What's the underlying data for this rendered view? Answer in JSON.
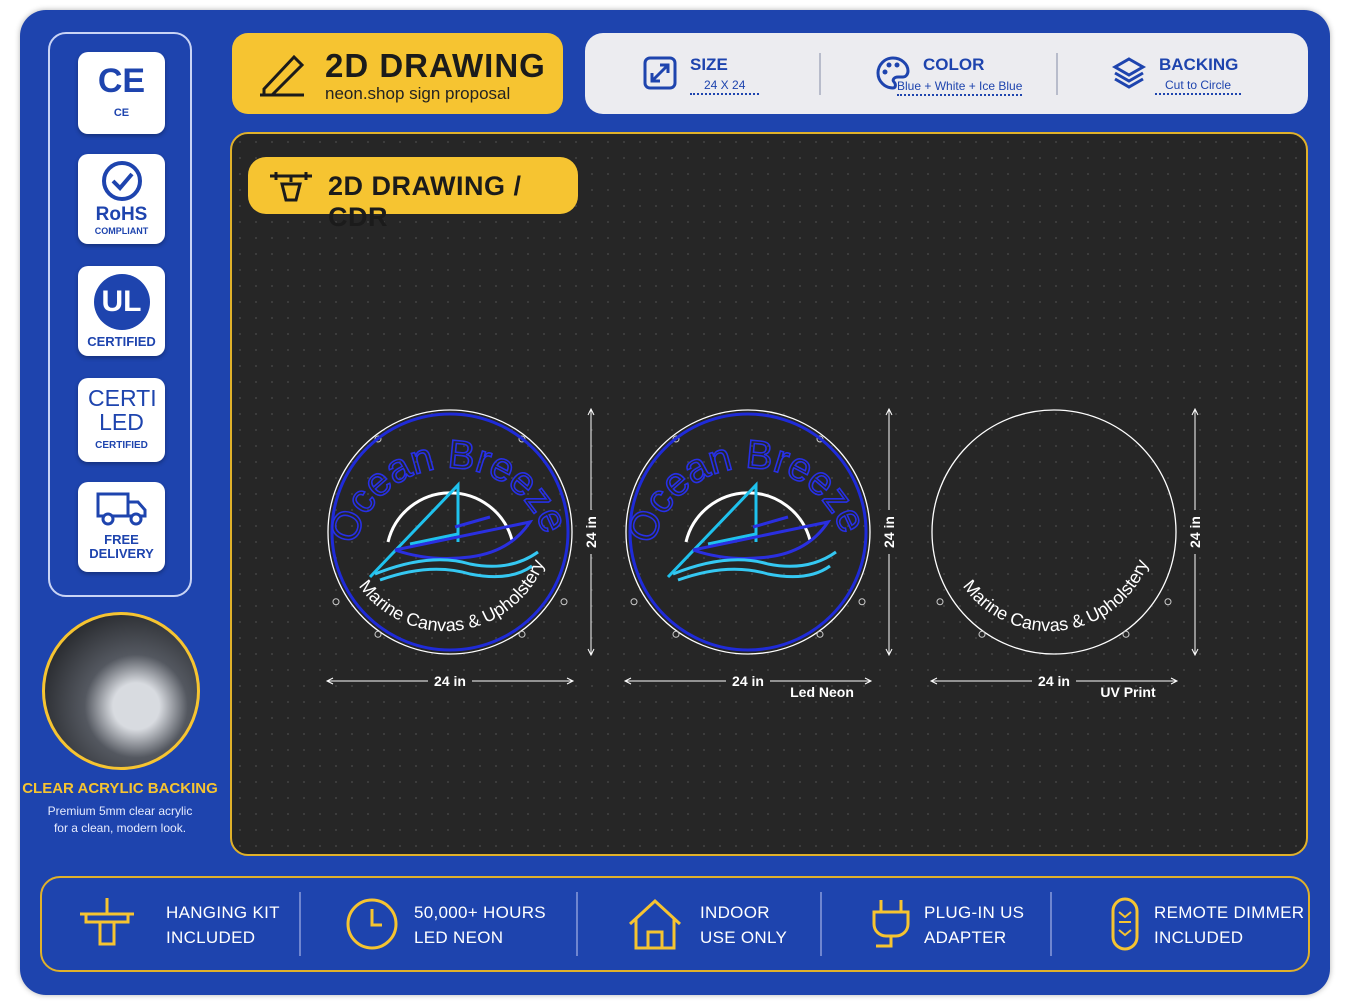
{
  "header": {
    "title": "2D DRAWING",
    "subtitle": "neon.shop sign proposal"
  },
  "specs": [
    {
      "label": "SIZE",
      "value": "24 X 24"
    },
    {
      "label": "COLOR",
      "value": "Blue + White + Ice Blue"
    },
    {
      "label": "BACKING",
      "value": "Cut to Circle"
    }
  ],
  "badges": [
    {
      "logo": "CE",
      "caption": "CE"
    },
    {
      "logo": "RoHS",
      "caption": "COMPLIANT"
    },
    {
      "logo": "UL",
      "caption": "CERTIFIED"
    },
    {
      "logo": "CERTI LED",
      "caption": "CERTIFIED"
    },
    {
      "logo": "FREE",
      "caption": "DELIVERY"
    }
  ],
  "acrylic": {
    "title": "CLEAR ACRYLIC BACKING",
    "lines": [
      "Premium 5mm clear acrylic",
      "for a clean, modern look."
    ]
  },
  "drawing": {
    "tab": "2D DRAWING / CDR",
    "sign": {
      "title": "Ocean Breeze",
      "subtitle": "Marine Canvas & Upholstery"
    },
    "panels": [
      {
        "width": "24 in",
        "height": "24 in"
      },
      {
        "width": "24 in",
        "height": "24 in",
        "caption": "Led Neon"
      },
      {
        "width": "24 in",
        "height": "24 in",
        "caption": "UV Print"
      }
    ]
  },
  "features": [
    {
      "lines": [
        "HANGING KIT",
        "INCLUDED"
      ]
    },
    {
      "lines": [
        "50,000+ HOURS",
        "LED NEON"
      ]
    },
    {
      "lines": [
        "INDOOR",
        "USE ONLY"
      ]
    },
    {
      "lines": [
        "PLUG-IN US",
        "ADAPTER"
      ]
    },
    {
      "lines": [
        "REMOTE DIMMER",
        "INCLUDED"
      ]
    }
  ]
}
